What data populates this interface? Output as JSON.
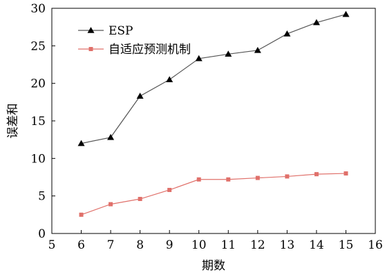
{
  "chart_data": {
    "type": "line",
    "xlabel": "期数",
    "ylabel": "误差和",
    "xlim": [
      5,
      16
    ],
    "ylim": [
      0,
      30
    ],
    "xticks": [
      5,
      6,
      7,
      8,
      9,
      10,
      11,
      12,
      13,
      14,
      15,
      16
    ],
    "yticks": [
      0,
      5,
      10,
      15,
      20,
      25,
      30
    ],
    "grid": false,
    "legend_position": "top-left",
    "x": [
      6,
      7,
      8,
      9,
      10,
      11,
      12,
      13,
      14,
      15
    ],
    "series": [
      {
        "name": "ESP",
        "values": [
          12.0,
          12.8,
          18.3,
          20.5,
          23.3,
          23.9,
          24.4,
          26.6,
          28.1,
          29.2
        ],
        "color": "#555555",
        "marker": "triangle"
      },
      {
        "name": "自适应预测机制",
        "values": [
          2.5,
          3.9,
          4.6,
          5.8,
          7.2,
          7.2,
          7.4,
          7.6,
          7.9,
          8.0
        ],
        "color": "#e0706a",
        "marker": "square"
      }
    ]
  }
}
